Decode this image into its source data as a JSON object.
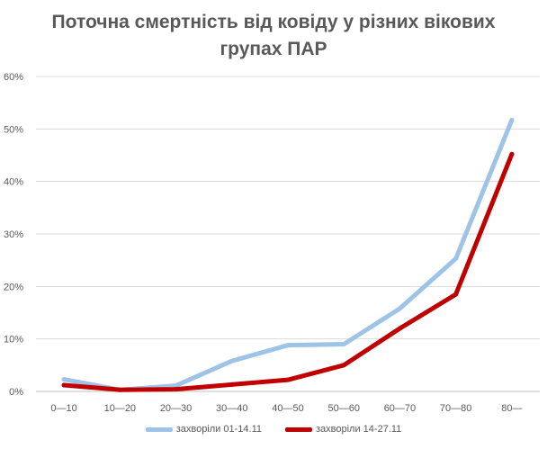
{
  "chart_data": {
    "type": "line",
    "title_lines": [
      "Поточна смертність від ковіду у різних вікових",
      "групах ПАР"
    ],
    "categories": [
      "0—10",
      "10—20",
      "20—30",
      "30—40",
      "40—50",
      "50—60",
      "60—70",
      "70—80",
      "80—"
    ],
    "y_ticks": [
      "0%",
      "10%",
      "20%",
      "30%",
      "40%",
      "50%",
      "60%"
    ],
    "ylim": [
      0,
      60
    ],
    "grid": true,
    "legend_position": "bottom",
    "series": [
      {
        "name": "захворіли 01-14.11",
        "color": "#9dc3e6",
        "values": [
          2.3,
          0.3,
          1.1,
          5.8,
          8.8,
          9.0,
          15.8,
          25.3,
          51.7
        ]
      },
      {
        "name": "захворіли 14-27.11",
        "color": "#c00000",
        "values": [
          1.2,
          0.3,
          0.4,
          1.3,
          2.2,
          5.0,
          12.0,
          18.5,
          45.2
        ]
      }
    ]
  }
}
